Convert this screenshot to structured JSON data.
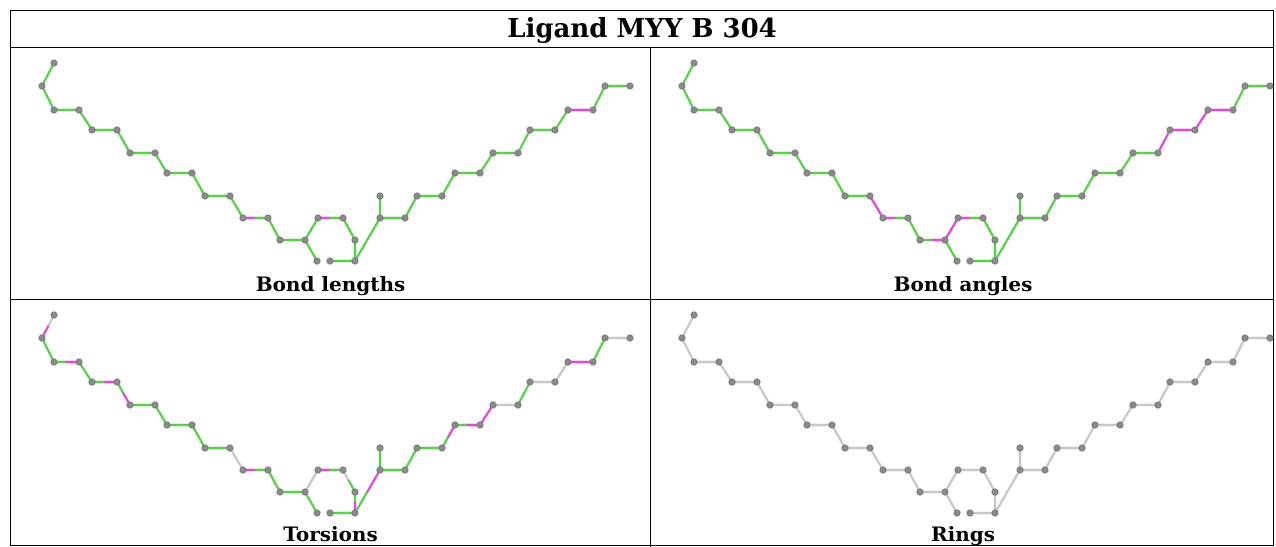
{
  "title": "Ligand MYY B 304",
  "panels": [
    {
      "caption": "Bond lengths",
      "colors": [
        "#5ccf4d",
        "#5ccf4d",
        "#5ccf4d",
        "#5ccf4d",
        "#5ccf4d",
        "#5ccf4d",
        "#5ccf4d",
        "#5ccf4d",
        "#5ccf4d",
        "#5ccf4d",
        "#5ccf4d",
        "#5ccf4d",
        "#5ccf4d",
        "#5ccf4d",
        "#5ccf4d",
        "#5ccf4d",
        "#5ccf4d",
        "#5ccf4d",
        "#5ccf4d",
        "#5ccf4d",
        "#5ccf4d",
        "#5ccf4d",
        "#5ccf4d",
        "#5ccf4d",
        "#e048e0",
        "#5ccf4d",
        "#5ccf4d",
        "#5ccf4d",
        "#5ccf4d",
        "#5ccf4d",
        "#5ccf4d",
        "#5ccf4d",
        "#e048e0",
        "#5ccf4d",
        "#5ccf4d",
        "#5ccf4d",
        "#5ccf4d",
        "#5ccf4d",
        "#5ccf4d",
        "#5ccf4d",
        "#5ccf4d",
        "#5ccf4d",
        "#5ccf4d",
        "#5ccf4d",
        "#5ccf4d",
        "#5ccf4d",
        "#5ccf4d",
        "#5ccf4d",
        "#5ccf4d",
        "#5ccf4d",
        "#5ccf4d",
        "#5ccf4d",
        "#5ccf4d",
        "#5ccf4d",
        "#5ccf4d",
        "#5ccf4d",
        "#5ccf4d",
        "#5ccf4d"
      ]
    },
    {
      "caption": "Bond angles",
      "colors": [
        "#5ccf4d",
        "#5ccf4d",
        "#5ccf4d",
        "#5ccf4d",
        "#5ccf4d",
        "#5ccf4d",
        "#5ccf4d",
        "#5ccf4d",
        "#5ccf4d",
        "#5ccf4d",
        "#5ccf4d",
        "#5ccf4d",
        "#5ccf4d",
        "#5ccf4d",
        "#5ccf4d",
        "#5ccf4d",
        "#5ccf4d",
        "#5ccf4d",
        "#5ccf4d",
        "#5ccf4d",
        "#5ccf4d",
        "#5ccf4d",
        "#e048e0",
        "#e048e0",
        "#e048e0",
        "#5ccf4d",
        "#5ccf4d",
        "#5ccf4d",
        "#5ccf4d",
        "#e048e0",
        "#e048e0",
        "#e048e0",
        "#e048e0",
        "#5ccf4d",
        "#5ccf4d",
        "#5ccf4d",
        "#5ccf4d",
        "#5ccf4d",
        "#5ccf4d",
        "#5ccf4d",
        "#5ccf4d",
        "#5ccf4d",
        "#5ccf4d",
        "#5ccf4d",
        "#5ccf4d",
        "#5ccf4d",
        "#5ccf4d",
        "#5ccf4d",
        "#5ccf4d",
        "#5ccf4d",
        "#5ccf4d",
        "#5ccf4d",
        "#5ccf4d",
        "#5ccf4d",
        "#5ccf4d",
        "#5ccf4d",
        "#5ccf4d",
        "#5ccf4d"
      ]
    },
    {
      "caption": "Torsions",
      "colors": [
        "#c8c8c8",
        "#e048e0",
        "#5ccf4d",
        "#5ccf4d",
        "#5ccf4d",
        "#e048e0",
        "#5ccf4d",
        "#5ccf4d",
        "#5ccf4d",
        "#e048e0",
        "#5ccf4d",
        "#e048e0",
        "#5ccf4d",
        "#5ccf4d",
        "#5ccf4d",
        "#5ccf4d",
        "#5ccf4d",
        "#5ccf4d",
        "#5ccf4d",
        "#5ccf4d",
        "#5ccf4d",
        "#5ccf4d",
        "#c8c8c8",
        "#c8c8c8",
        "#e048e0",
        "#5ccf4d",
        "#5ccf4d",
        "#5ccf4d",
        "#5ccf4d",
        "#5ccf4d",
        "#c8c8c8",
        "#c8c8c8",
        "#e048e0",
        "#5ccf4d",
        "#c8c8c8",
        "#5ccf4d",
        "#5ccf4d",
        "#e048e0",
        "#5ccf4d",
        "#5ccf4d",
        "#5ccf4d",
        "#5ccf4d",
        "#5ccf4d",
        "#e048e0",
        "#5ccf4d",
        "#5ccf4d",
        "#5ccf4d",
        "#5ccf4d",
        "#5ccf4d",
        "#5ccf4d",
        "#5ccf4d",
        "#e048e0",
        "#5ccf4d",
        "#e048e0",
        "#e048e0",
        "#e048e0",
        "#c8c8c8",
        "#c8c8c8"
      ]
    },
    {
      "caption": "Rings",
      "colors": []
    }
  ]
}
